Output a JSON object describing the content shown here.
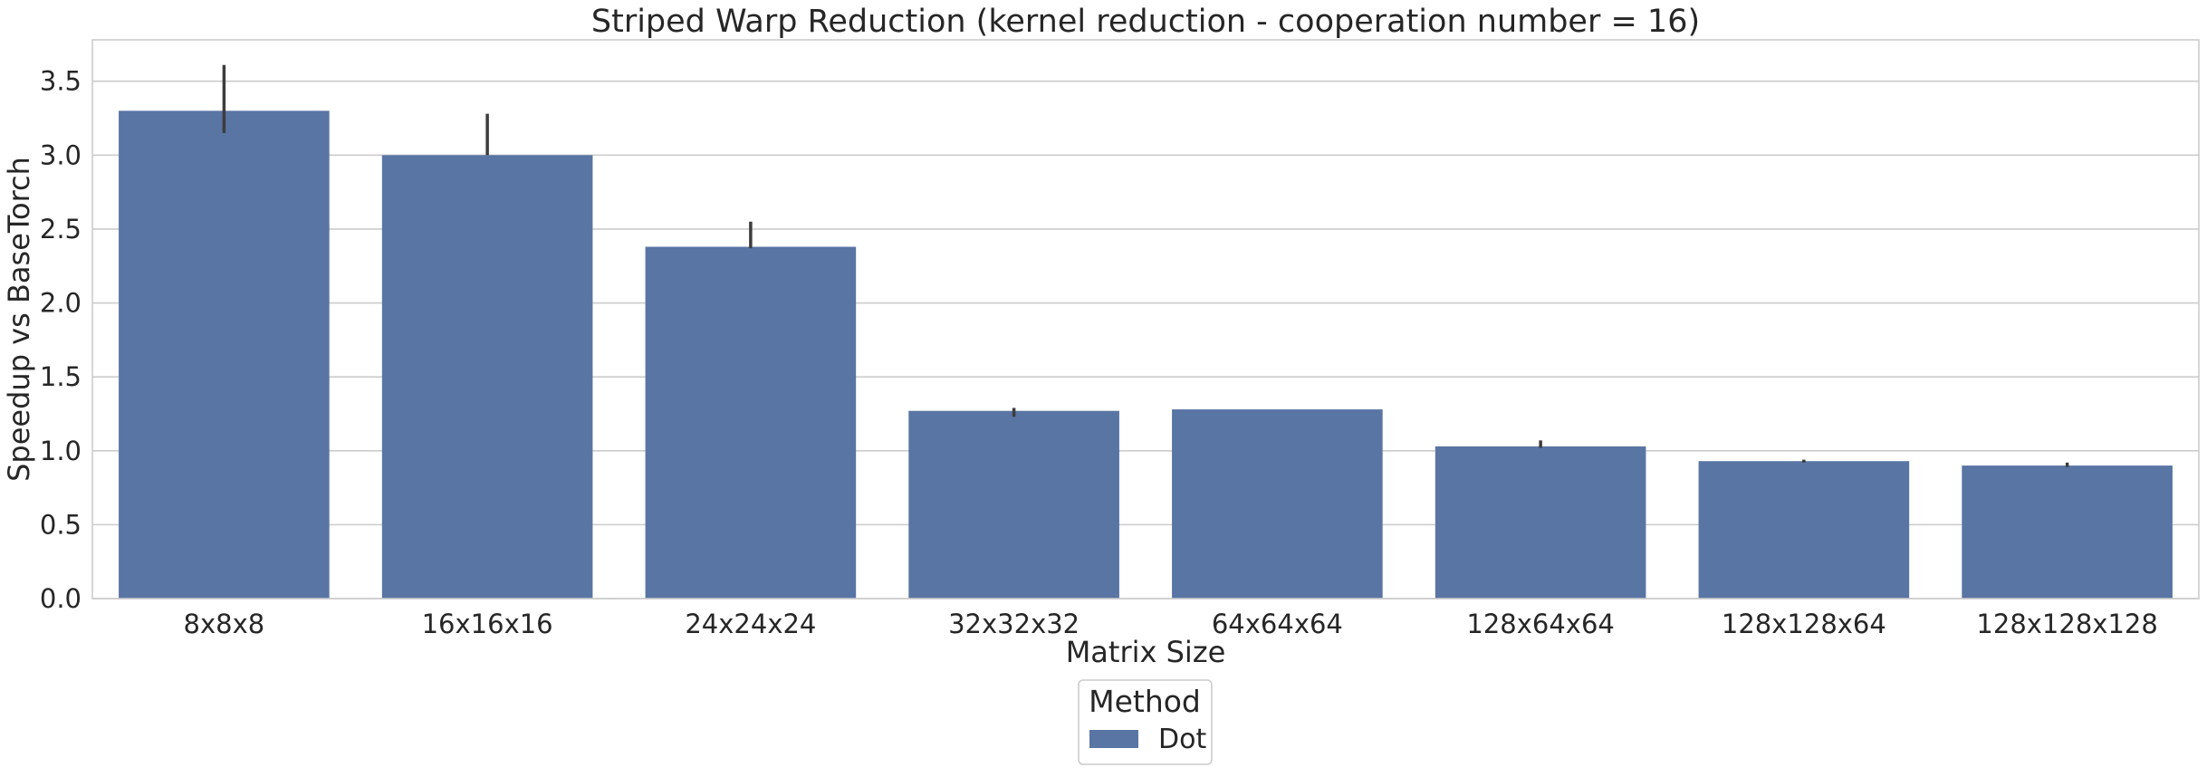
{
  "chart_data": {
    "type": "bar",
    "title": "Striped Warp Reduction (kernel reduction - cooperation number = 16)",
    "xlabel": "Matrix Size",
    "ylabel": "Speedup vs BaseTorch",
    "categories": [
      "8x8x8",
      "16x16x16",
      "24x24x24",
      "32x32x32",
      "64x64x64",
      "128x64x64",
      "128x128x64",
      "128x128x128"
    ],
    "series": [
      {
        "name": "Dot",
        "color": "#5975a4",
        "values": [
          3.3,
          3.0,
          2.38,
          1.27,
          1.28,
          1.03,
          0.93,
          0.9
        ],
        "error_low": [
          3.15,
          3.0,
          2.37,
          1.23,
          1.28,
          1.02,
          0.92,
          0.89
        ],
        "error_high": [
          3.61,
          3.28,
          2.55,
          1.29,
          1.28,
          1.07,
          0.94,
          0.92
        ]
      }
    ],
    "ylim": [
      0,
      3.78
    ],
    "yticks": [
      0.0,
      0.5,
      1.0,
      1.5,
      2.0,
      2.5,
      3.0,
      3.5
    ],
    "ytick_labels": [
      "0.0",
      "0.5",
      "1.0",
      "1.5",
      "2.0",
      "2.5",
      "3.0",
      "3.5"
    ],
    "grid": true,
    "legend": {
      "title": "Method",
      "placement": "bottom-center",
      "entries": [
        "Dot"
      ]
    },
    "colors": {
      "bar": "#5975a4",
      "errorbar": "#3d3d3d",
      "grid": "#cccccc",
      "spine": "#cccccc"
    }
  }
}
